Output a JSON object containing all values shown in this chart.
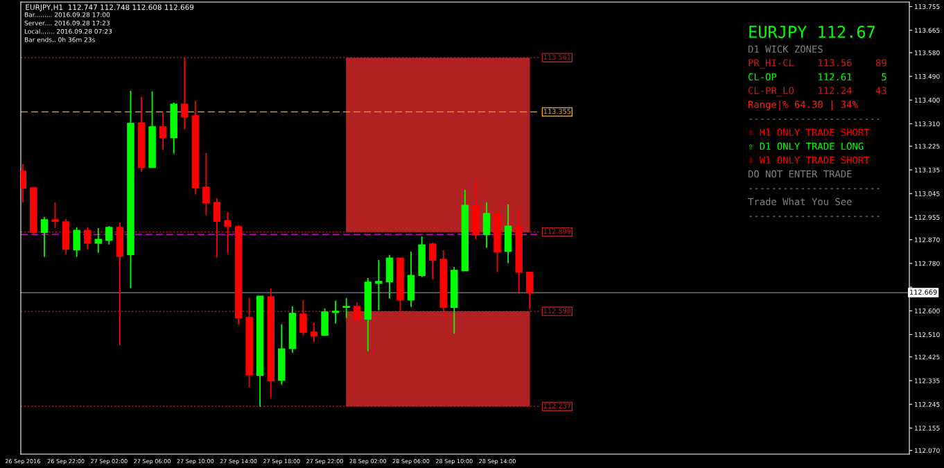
{
  "chart_data": {
    "type": "candlestick",
    "title": "EURJPY,H1  112.747 112.748 112.608 112.669",
    "colors": [
      "#ff0000",
      "#ff0000",
      "#00ff00",
      "#ff0000",
      "#ff0000",
      "#00ff00",
      "#ff0000",
      "#00ff00",
      "#00ff00",
      "#ff0000",
      "#00ff00",
      "#ff0000",
      "#00ff00",
      "#ff0000",
      "#00ff00",
      "#ff0000",
      "#ff0000",
      "#ff0000",
      "#ff0000",
      "#ff0000",
      "#ff0000",
      "#ff0000",
      "#00ff00",
      "#ff0000",
      "#00ff00",
      "#00ff00",
      "#ff0000",
      "#ff0000",
      "#00ff00",
      "#00ff00",
      "#00ff00",
      "#ff0000",
      "#00ff00",
      "#00ff00",
      "#00ff00",
      "#ff0000",
      "#00ff00",
      "#00ff00",
      "#ff0000",
      "#ff0000",
      "#00ff00",
      "#00ff00",
      "#ff0000",
      "#00ff00",
      "#ff0000",
      "#00ff00",
      "#ff0000",
      "#ff0000"
    ],
    "x": [
      "2016-09-26T18:00",
      "2016-09-26T19:00",
      "2016-09-26T20:00",
      "2016-09-26T21:00",
      "2016-09-26T22:00",
      "2016-09-26T23:00",
      "2016-09-27T00:00",
      "2016-09-27T01:00",
      "2016-09-27T02:00",
      "2016-09-27T03:00",
      "2016-09-27T04:00",
      "2016-09-27T05:00",
      "2016-09-27T06:00",
      "2016-09-27T07:00",
      "2016-09-27T08:00",
      "2016-09-27T09:00",
      "2016-09-27T10:00",
      "2016-09-27T11:00",
      "2016-09-27T12:00",
      "2016-09-27T13:00",
      "2016-09-27T14:00",
      "2016-09-27T15:00",
      "2016-09-27T16:00",
      "2016-09-27T17:00",
      "2016-09-27T18:00",
      "2016-09-27T19:00",
      "2016-09-27T20:00",
      "2016-09-27T21:00",
      "2016-09-27T22:00",
      "2016-09-27T23:00",
      "2016-09-28T00:00",
      "2016-09-28T01:00",
      "2016-09-28T02:00",
      "2016-09-28T03:00",
      "2016-09-28T04:00",
      "2016-09-28T05:00",
      "2016-09-28T06:00",
      "2016-09-28T07:00",
      "2016-09-28T08:00",
      "2016-09-28T09:00",
      "2016-09-28T10:00",
      "2016-09-28T11:00",
      "2016-09-28T12:00",
      "2016-09-28T13:00",
      "2016-09-28T14:00",
      "2016-09-28T15:00",
      "2016-09-28T16:00",
      "2016-09-28T17:00"
    ],
    "ohlc": [
      [
        113.13,
        113.157,
        113.011,
        113.065
      ],
      [
        113.067,
        113.07,
        112.889,
        112.897
      ],
      [
        112.897,
        112.956,
        112.805,
        112.946
      ],
      [
        112.946,
        113.012,
        112.914,
        112.939
      ],
      [
        112.938,
        112.949,
        112.815,
        112.834
      ],
      [
        112.831,
        112.917,
        112.805,
        112.906
      ],
      [
        112.906,
        112.917,
        112.834,
        112.857
      ],
      [
        112.857,
        112.914,
        112.82,
        112.872
      ],
      [
        112.868,
        112.922,
        112.852,
        112.917
      ],
      [
        112.917,
        112.935,
        112.47,
        112.807
      ],
      [
        112.813,
        113.435,
        112.686,
        113.312
      ],
      [
        113.314,
        113.412,
        113.128,
        113.144
      ],
      [
        113.144,
        113.433,
        113.144,
        113.299
      ],
      [
        113.299,
        113.354,
        113.21,
        113.257
      ],
      [
        113.257,
        113.391,
        113.197,
        113.385
      ],
      [
        113.385,
        113.561,
        113.289,
        113.336
      ],
      [
        113.341,
        113.396,
        113.042,
        113.067
      ],
      [
        113.07,
        113.199,
        112.963,
        113.009
      ],
      [
        113.012,
        113.028,
        112.802,
        112.939
      ],
      [
        112.943,
        112.975,
        112.818,
        112.92
      ],
      [
        112.92,
        112.925,
        112.547,
        112.573
      ],
      [
        112.575,
        112.649,
        112.31,
        112.357
      ],
      [
        112.355,
        112.656,
        112.236,
        112.656
      ],
      [
        112.654,
        112.685,
        112.27,
        112.334
      ],
      [
        112.336,
        112.549,
        112.32,
        112.456
      ],
      [
        112.457,
        112.617,
        112.441,
        112.591
      ],
      [
        112.588,
        112.641,
        112.507,
        112.518
      ],
      [
        112.52,
        112.554,
        112.481,
        112.505
      ],
      [
        112.507,
        112.609,
        112.505,
        112.596
      ],
      [
        112.594,
        112.638,
        112.552,
        112.599
      ],
      [
        112.613,
        112.649,
        112.573,
        112.617
      ],
      [
        112.617,
        112.633,
        112.567,
        112.567
      ],
      [
        112.568,
        112.725,
        112.447,
        112.709
      ],
      [
        112.705,
        112.793,
        112.602,
        112.712
      ],
      [
        112.71,
        112.812,
        112.647,
        112.801
      ],
      [
        112.801,
        112.801,
        112.599,
        112.641
      ],
      [
        112.641,
        112.825,
        112.615,
        112.735
      ],
      [
        112.734,
        112.883,
        112.728,
        112.851
      ],
      [
        112.854,
        112.859,
        112.72,
        112.792
      ],
      [
        112.796,
        112.83,
        112.573,
        112.613
      ],
      [
        112.613,
        112.767,
        112.513,
        112.754
      ],
      [
        112.752,
        113.059,
        112.752,
        113.001
      ],
      [
        113.001,
        113.091,
        112.873,
        112.889
      ],
      [
        112.889,
        113.012,
        112.839,
        112.97
      ],
      [
        112.97,
        112.98,
        112.747,
        112.823
      ],
      [
        112.826,
        113.004,
        112.781,
        112.922
      ],
      [
        112.92,
        112.988,
        112.668,
        112.747
      ],
      [
        112.747,
        112.748,
        112.608,
        112.669
      ]
    ],
    "xlim": [
      "2016-09-26T17:49",
      "2016-09-30T04:12"
    ],
    "xticks": [
      {
        "value": "2016-09-26T18:00",
        "label": "26 Sep 2016"
      },
      {
        "value": "2016-09-26T22:00",
        "label": "26 Sep 22:00"
      },
      {
        "value": "2016-09-27T02:00",
        "label": "27 Sep 02:00"
      },
      {
        "value": "2016-09-27T06:00",
        "label": "27 Sep 06:00"
      },
      {
        "value": "2016-09-27T10:00",
        "label": "27 Sep 10:00"
      },
      {
        "value": "2016-09-27T14:00",
        "label": "27 Sep 14:00"
      },
      {
        "value": "2016-09-27T18:00",
        "label": "27 Sep 18:00"
      },
      {
        "value": "2016-09-27T22:00",
        "label": "27 Sep 22:00"
      },
      {
        "value": "2016-09-28T02:00",
        "label": "28 Sep 02:00"
      },
      {
        "value": "2016-09-28T06:00",
        "label": "28 Sep 06:00"
      },
      {
        "value": "2016-09-28T10:00",
        "label": "28 Sep 10:00"
      },
      {
        "value": "2016-09-28T14:00",
        "label": "28 Sep 14:00"
      }
    ],
    "ylim": [
      112.056,
      113.772
    ],
    "yticks": [
      113.755,
      113.665,
      {
        "value": 113.58,
        "label": "113.580"
      },
      {
        "value": 113.49,
        "label": "113.490"
      },
      {
        "value": 113.4,
        "label": "113.400"
      },
      {
        "value": 113.31,
        "label": "113.310"
      },
      113.225,
      113.135,
      113.045,
      112.955,
      {
        "value": 112.87,
        "label": "112.870"
      },
      {
        "value": 112.78,
        "label": "112.780"
      },
      {
        "value": 112.69,
        "label": null
      },
      {
        "value": 112.6,
        "label": "112.600"
      },
      {
        "value": 112.51,
        "label": "112.510"
      },
      112.425,
      112.335,
      112.245,
      112.155,
      {
        "value": 112.07,
        "label": "112.070"
      }
    ],
    "bands": [
      {
        "axis": "y",
        "from": 112.899,
        "to": 113.561,
        "color": "#b22222"
      },
      {
        "axis": "y",
        "from": 112.237,
        "to": 112.598,
        "color": "#b22222"
      }
    ],
    "ref_lines": [
      {
        "axis": "y",
        "value": 113.561,
        "label": "113.561",
        "color": "#b22222",
        "line_style": "dotted"
      },
      {
        "axis": "y",
        "value": 113.355,
        "label": "113.355",
        "color": "#ffa500",
        "line_style": "dashed"
      },
      {
        "axis": "y",
        "value": 112.899,
        "label": "112.899",
        "color": "#b22222",
        "line_style": "dotted"
      },
      {
        "axis": "y",
        "value": 112.89,
        "label": null,
        "color": "#ff00ff",
        "line_style": "dashed"
      },
      {
        "axis": "y",
        "value": 112.598,
        "label": "112.598",
        "color": "#b22222",
        "line_style": "dotted"
      },
      {
        "axis": "y",
        "value": 112.237,
        "label": "112.237",
        "color": "#b22222",
        "line_style": "dotted"
      },
      {
        "axis": "y",
        "value": 112.669,
        "label": "112.669",
        "color": "#778899",
        "line_style": "solid"
      }
    ],
    "annotations": [
      "Bar......... 2016.09.28 17:00",
      "Server.... 2016.09.28 17:23",
      "Local....... 2016.09.28 07:23",
      "Bar ends.. 0h 36m 23s",
      "EURJPY 112.67",
      "D1 WICK ZONES",
      "PR_HI-CL    113.56    89",
      "CL-OP       112.61     5",
      "CL-PR_LO    112.24    43",
      "Range|% 64.30 | 34%",
      "-----------------------",
      "⇩ H1 ONLY TRADE SHORT",
      "⇧ D1 ONLY TRADE LONG",
      "⇩ W1 ONLY TRADE SHORT",
      "DO NOT ENTER TRADE",
      "-----------------------",
      "Trade What You See",
      "-----------------------"
    ]
  }
}
